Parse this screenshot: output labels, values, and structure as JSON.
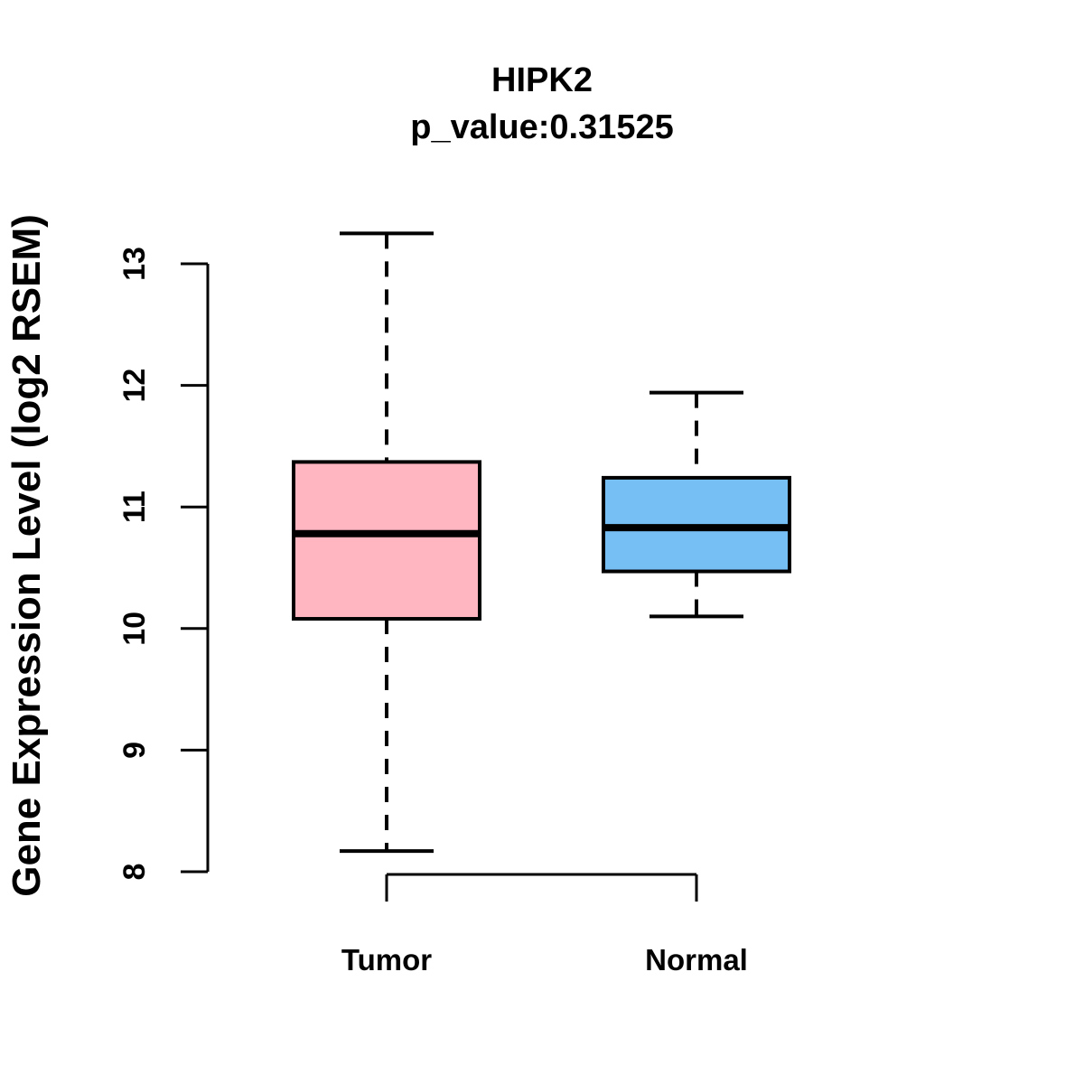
{
  "chart_data": {
    "type": "boxplot",
    "title": "HIPK2",
    "subtitle": "p_value:0.31525",
    "ylabel": "Gene Expression Level (log2 RSEM)",
    "xlabel": "",
    "categories": [
      "Tumor",
      "Normal"
    ],
    "y_ticks": [
      8,
      9,
      10,
      11,
      12,
      13
    ],
    "ylim": [
      7.9,
      13.4
    ],
    "grid": false,
    "legend": "none",
    "line_color": "#000000",
    "background": "#FFFFFF",
    "series": [
      {
        "name": "Tumor",
        "color": "#FFB6C1",
        "whisker_low": 8.17,
        "q1": 10.08,
        "median": 10.78,
        "q3": 11.37,
        "whisker_high": 13.25
      },
      {
        "name": "Normal",
        "color": "#76BFF5",
        "whisker_low": 10.1,
        "q1": 10.47,
        "median": 10.83,
        "q3": 11.24,
        "whisker_high": 11.94
      }
    ]
  }
}
